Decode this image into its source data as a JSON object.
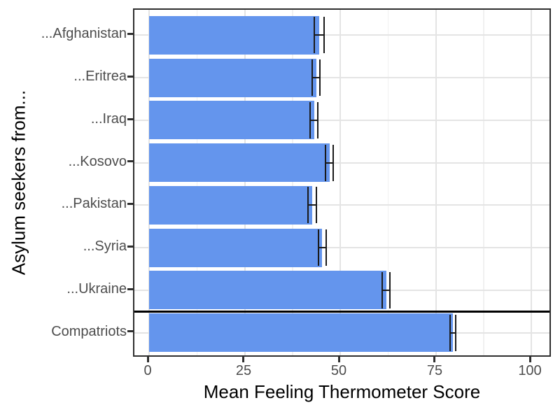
{
  "chart_data": {
    "type": "bar",
    "orientation": "horizontal",
    "title": "",
    "xlabel": "Mean Feeling Thermometer Score",
    "ylabel": "Asylum seekers from...",
    "categories": [
      "...Afghanistan",
      "...Eritrea",
      "...Iraq",
      "...Kosovo",
      "...Pakistan",
      "...Syria",
      "...Ukraine",
      "Compatriots"
    ],
    "series": [
      {
        "name": "Mean Feeling Thermometer Score",
        "values": [
          44.5,
          43.7,
          43.2,
          47.2,
          42.6,
          45.3,
          62.0,
          79.5
        ],
        "errors": [
          1.2,
          1.0,
          1.0,
          1.0,
          1.1,
          1.0,
          1.0,
          0.8
        ]
      }
    ],
    "x_ticks": [
      0,
      25,
      50,
      75,
      100
    ],
    "xlim": [
      0,
      100
    ],
    "grid": "on",
    "x_minor_ticks": [
      12.5,
      37.5,
      62.5,
      87.5
    ],
    "legend_position": "none",
    "separator_line_after_category_index": 6,
    "colors": {
      "bar_fill": "#6495ED",
      "error_bar": "#1a1a1a",
      "grid_major": "#e4e4e4",
      "grid_minor": "#f1f1f1",
      "panel_border": "#2f2f2f",
      "tick_label": "#4d4d4d",
      "axis_title": "#000000",
      "separator": "#000000",
      "background": "#ffffff"
    }
  }
}
